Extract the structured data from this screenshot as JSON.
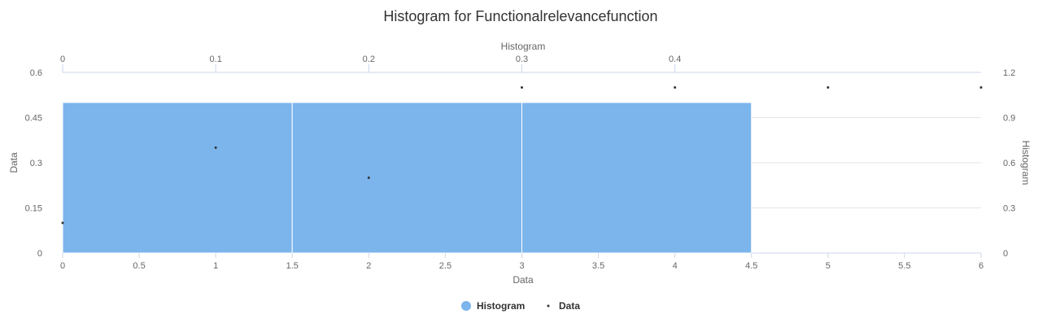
{
  "chart_data": {
    "type": "bar",
    "title": "Histogram for Functionalrelevancefunction",
    "colors": {
      "histogram": "#7cb5ec",
      "data_points": "#333333"
    },
    "axes": {
      "x_bottom": {
        "label": "Data",
        "range": [
          0,
          6
        ],
        "ticks": [
          "0",
          "0.5",
          "1",
          "1.5",
          "2",
          "2.5",
          "3",
          "3.5",
          "4",
          "4.5",
          "5",
          "5.5",
          "6"
        ]
      },
      "x_top": {
        "label": "Histogram",
        "range": [
          0,
          0.6
        ],
        "ticks": [
          "0",
          "0.1",
          "0.2",
          "0.3",
          "0.4"
        ]
      },
      "y_left": {
        "label": "Data",
        "range": [
          0,
          0.6
        ],
        "ticks": [
          "0",
          "0.15",
          "0.3",
          "0.45",
          "0.6"
        ]
      },
      "y_right": {
        "label": "Histogram",
        "range": [
          0,
          1.2
        ],
        "ticks": [
          "0",
          "0.3",
          "0.6",
          "0.9",
          "1.2"
        ]
      }
    },
    "grid": true,
    "series": [
      {
        "name": "Histogram",
        "type": "histogram",
        "bins": [
          {
            "x0": 0,
            "x1": 1.5,
            "y": 1
          },
          {
            "x0": 1.5,
            "x1": 3,
            "y": 1
          },
          {
            "x0": 3,
            "x1": 4.5,
            "y": 1
          }
        ]
      },
      {
        "name": "Data",
        "type": "scatter",
        "points": [
          {
            "x": 0,
            "y": 0.1
          },
          {
            "x": 1,
            "y": 0.35
          },
          {
            "x": 2,
            "y": 0.25
          },
          {
            "x": 3,
            "y": 0.55
          },
          {
            "x": 4,
            "y": 0.55
          },
          {
            "x": 5,
            "y": 0.55
          },
          {
            "x": 6,
            "y": 0.55
          }
        ]
      }
    ],
    "legend": {
      "position": "bottom-center",
      "items": [
        "Histogram",
        "Data"
      ]
    }
  }
}
